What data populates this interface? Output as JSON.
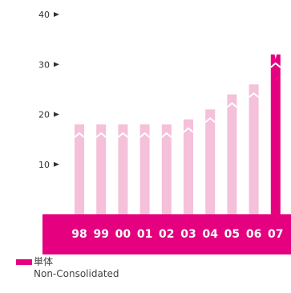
{
  "chart_data": {
    "type": "bar",
    "categories": [
      "98",
      "99",
      "00",
      "01",
      "02",
      "03",
      "04",
      "05",
      "06",
      "07"
    ],
    "series": [
      {
        "name": "単体 Non-Consolidated",
        "values": [
          18,
          18,
          18,
          18,
          18,
          19,
          21,
          24,
          26,
          32
        ]
      }
    ],
    "y_ticks": [
      10,
      20,
      30,
      40
    ],
    "ylim": [
      0,
      40
    ],
    "highlight_category": "07",
    "grid": false,
    "legend_position": "bottom-left"
  },
  "legend": {
    "label_ja": "単体",
    "label_en": "Non-Consolidated"
  },
  "colors": {
    "accent": "#e5007f",
    "bar_light": "#f5c0d9",
    "tick_text": "#333333"
  }
}
